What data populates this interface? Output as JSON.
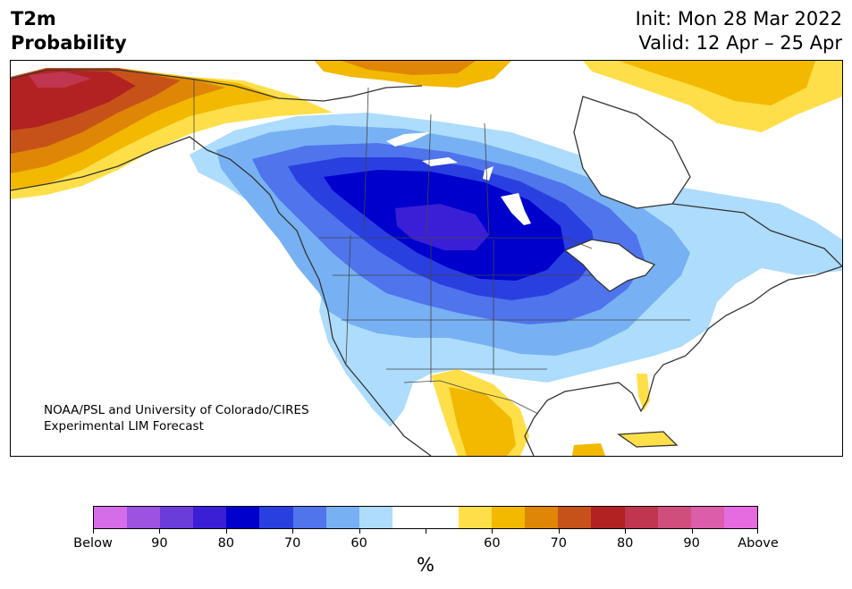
{
  "title": {
    "line1": "T2m",
    "line2": "Probability"
  },
  "dates": {
    "init": "Init: Mon 28 Mar 2022",
    "valid": "Valid: 12 Apr – 25 Apr"
  },
  "credit": {
    "line1": "NOAA/PSL and University of Colorado/CIRES",
    "line2": "Experimental LIM Forecast"
  },
  "colorbar": {
    "colors": [
      "#d56ce8",
      "#9e52e0",
      "#6a3cda",
      "#3a1fd6",
      "#0000cc",
      "#2a3fe0",
      "#4f74ec",
      "#77b1f3",
      "#addcfc",
      "#ffffff",
      "#ffffff",
      "#fedf49",
      "#f3b800",
      "#df8607",
      "#c6521a",
      "#b22222",
      "#c03550",
      "#cf4e7c",
      "#dc5da9",
      "#e76be0"
    ],
    "labels": [
      "Below",
      "90",
      "80",
      "70",
      "60",
      "60",
      "70",
      "80",
      "90",
      "Above"
    ],
    "units": "%"
  },
  "map_colors": {
    "ocean": "#ffffff",
    "coast": "#333333",
    "cold": [
      "#addcfc",
      "#77b1f3",
      "#4f74ec",
      "#2a3fe0",
      "#0000cc",
      "#3a1fd6"
    ],
    "warm": [
      "#fedf49",
      "#f3b800",
      "#df8607",
      "#c6521a",
      "#b22222",
      "#c03550"
    ]
  }
}
